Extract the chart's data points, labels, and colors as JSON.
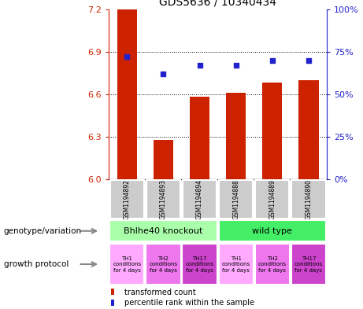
{
  "title": "GDS5636 / 10340434",
  "samples": [
    "GSM1194892",
    "GSM1194893",
    "GSM1194894",
    "GSM1194888",
    "GSM1194889",
    "GSM1194890"
  ],
  "transformed_count": [
    7.2,
    6.28,
    6.58,
    6.61,
    6.68,
    6.7
  ],
  "percentile_rank": [
    72,
    62,
    67,
    67,
    70,
    70
  ],
  "ylim_left": [
    6.0,
    7.2
  ],
  "ylim_right": [
    0,
    100
  ],
  "yticks_left": [
    6.0,
    6.3,
    6.6,
    6.9,
    7.2
  ],
  "yticks_right": [
    0,
    25,
    50,
    75,
    100
  ],
  "bar_color": "#cc2200",
  "dot_color": "#2222cc",
  "genotype_groups": [
    {
      "label": "Bhlhe40 knockout",
      "color": "#aaffaa",
      "span": [
        0,
        3
      ]
    },
    {
      "label": "wild type",
      "color": "#44ee66",
      "span": [
        3,
        6
      ]
    }
  ],
  "growth_protocols": [
    {
      "label": "TH1\nconditions\nfor 4 days",
      "color": "#ffaaff"
    },
    {
      "label": "TH2\nconditions\nfor 4 days",
      "color": "#ee77ee"
    },
    {
      "label": "TH17\nconditions\nfor 4 days",
      "color": "#cc44cc"
    },
    {
      "label": "TH1\nconditions\nfor 4 days",
      "color": "#ffaaff"
    },
    {
      "label": "TH2\nconditions\nfor 4 days",
      "color": "#ee77ee"
    },
    {
      "label": "TH17\nconditions\nfor 4 days",
      "color": "#cc44cc"
    }
  ],
  "legend_red_label": "transformed count",
  "legend_blue_label": "percentile rank within the sample",
  "left_axis_color": "#cc2200",
  "right_axis_color": "#2222cc",
  "left_label": "genotype/variation",
  "bottom_label": "growth protocol",
  "sample_bg": "#cccccc",
  "bar_width": 0.55
}
